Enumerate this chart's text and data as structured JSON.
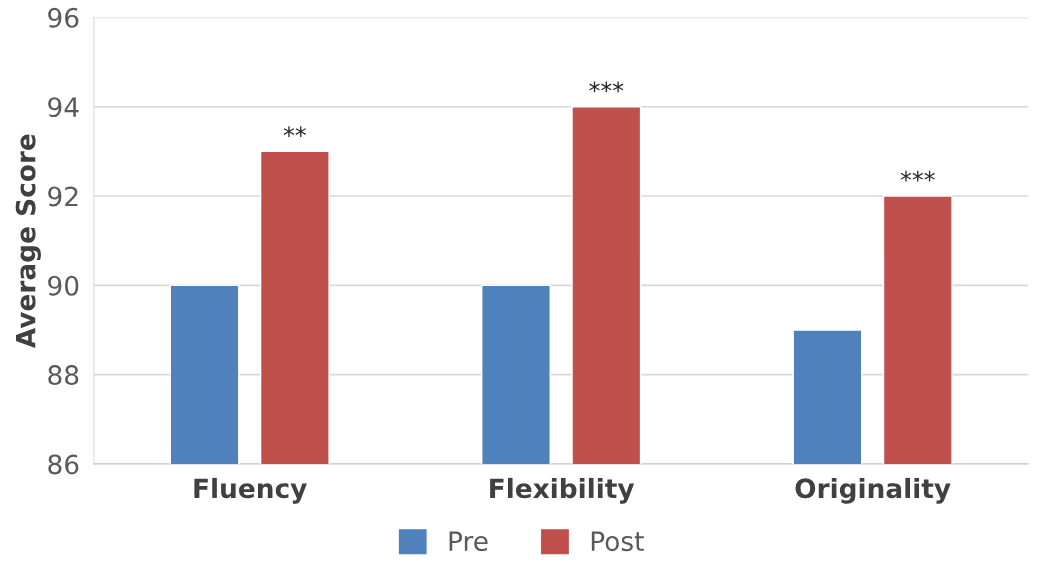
{
  "chart_data": {
    "type": "bar",
    "ylabel": "Average Score",
    "categories": [
      "Fluency",
      "Flexibility",
      "Originality"
    ],
    "series": [
      {
        "name": "Pre",
        "color": "#4f81bd",
        "values": [
          90,
          90,
          89
        ]
      },
      {
        "name": "Post",
        "color": "#c0504d",
        "values": [
          93,
          94,
          92
        ]
      }
    ],
    "ylim": [
      86,
      96
    ],
    "yticks": [
      86,
      88,
      90,
      92,
      94,
      96
    ],
    "grid": "y",
    "legend": "bottom",
    "annotations": [
      "**",
      "***",
      "***"
    ]
  }
}
